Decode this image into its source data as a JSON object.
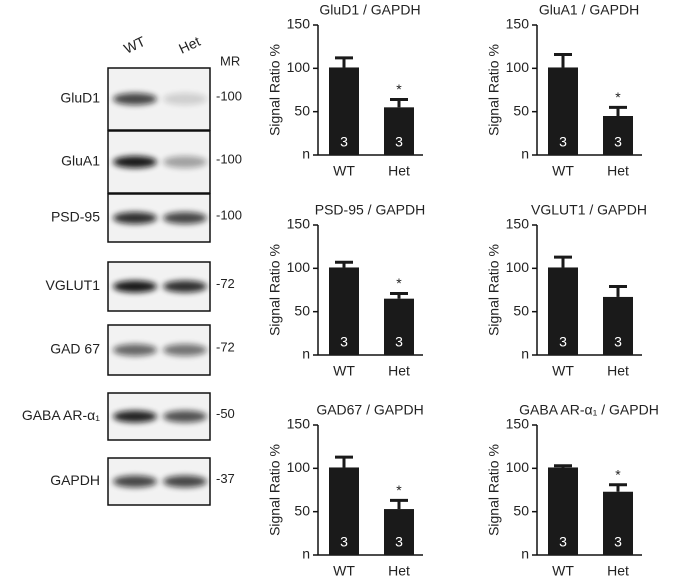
{
  "blot": {
    "lanes": [
      "WT",
      "Het"
    ],
    "marker_header": "MR",
    "rows": [
      {
        "label": "GluD1",
        "marker": "-100"
      },
      {
        "label": "GluA1",
        "marker": "-100"
      },
      {
        "label": "PSD-95",
        "marker": "-100"
      },
      {
        "label": "VGLUT1",
        "marker": "-72"
      },
      {
        "label": "GAD 67",
        "marker": "-72"
      },
      {
        "label": "GABA AR-α₁",
        "marker": "-50"
      },
      {
        "label": "GAPDH",
        "marker": "-37"
      }
    ]
  },
  "chart_data": [
    {
      "type": "bar",
      "title": "GluD1 / GAPDH",
      "ylabel": "Signal Ratio %",
      "categories": [
        "WT",
        "Het"
      ],
      "values": [
        101,
        55
      ],
      "errors": [
        11,
        9
      ],
      "n": [
        3,
        3
      ],
      "annotation": "*",
      "color": "#1a1a1a",
      "ylim": [
        0,
        150
      ],
      "yticks": [
        {
          "value": 0,
          "label": "n"
        },
        50,
        100,
        150
      ]
    },
    {
      "type": "bar",
      "title": "GluA1 / GAPDH",
      "ylabel": "Signal Ratio %",
      "categories": [
        "WT",
        "Het"
      ],
      "values": [
        101,
        45
      ],
      "errors": [
        15,
        10
      ],
      "n": [
        3,
        3
      ],
      "annotation": "*",
      "color": "#1a1a1a",
      "ylim": [
        0,
        150
      ],
      "yticks": [
        {
          "value": 0,
          "label": "n"
        },
        50,
        100,
        150
      ]
    },
    {
      "type": "bar",
      "title": "PSD-95 / GAPDH",
      "ylabel": "Signal Ratio %",
      "categories": [
        "WT",
        "Het"
      ],
      "values": [
        101,
        65
      ],
      "errors": [
        6,
        6
      ],
      "n": [
        3,
        3
      ],
      "annotation": "*",
      "color": "#1a1a1a",
      "ylim": [
        0,
        150
      ],
      "yticks": [
        {
          "value": 0,
          "label": "n"
        },
        50,
        100,
        150
      ]
    },
    {
      "type": "bar",
      "title": "VGLUT1 / GAPDH",
      "ylabel": "Signal Ratio %",
      "categories": [
        "WT",
        "Het"
      ],
      "values": [
        101,
        67
      ],
      "errors": [
        12,
        12
      ],
      "n": [
        3,
        3
      ],
      "color": "#1a1a1a",
      "ylim": [
        0,
        150
      ],
      "yticks": [
        {
          "value": 0,
          "label": "n"
        },
        50,
        100,
        150
      ]
    },
    {
      "type": "bar",
      "title": "GAD67 / GAPDH",
      "ylabel": "Signal Ratio %",
      "categories": [
        "WT",
        "Het"
      ],
      "values": [
        101,
        53
      ],
      "errors": [
        12,
        10
      ],
      "n": [
        3,
        3
      ],
      "annotation": "*",
      "color": "#1a1a1a",
      "ylim": [
        0,
        150
      ],
      "yticks": [
        {
          "value": 0,
          "label": "n"
        },
        50,
        100,
        150
      ]
    },
    {
      "type": "bar",
      "title": "GABA AR-α₁ / GAPDH",
      "ylabel": "Signal Ratio %",
      "categories": [
        "WT",
        "Het"
      ],
      "values": [
        101,
        73
      ],
      "errors": [
        2,
        8
      ],
      "n": [
        3,
        3
      ],
      "annotation": "*",
      "color": "#1a1a1a",
      "ylim": [
        0,
        150
      ],
      "yticks": [
        {
          "value": 0,
          "label": "n"
        },
        50,
        100,
        150
      ]
    }
  ]
}
